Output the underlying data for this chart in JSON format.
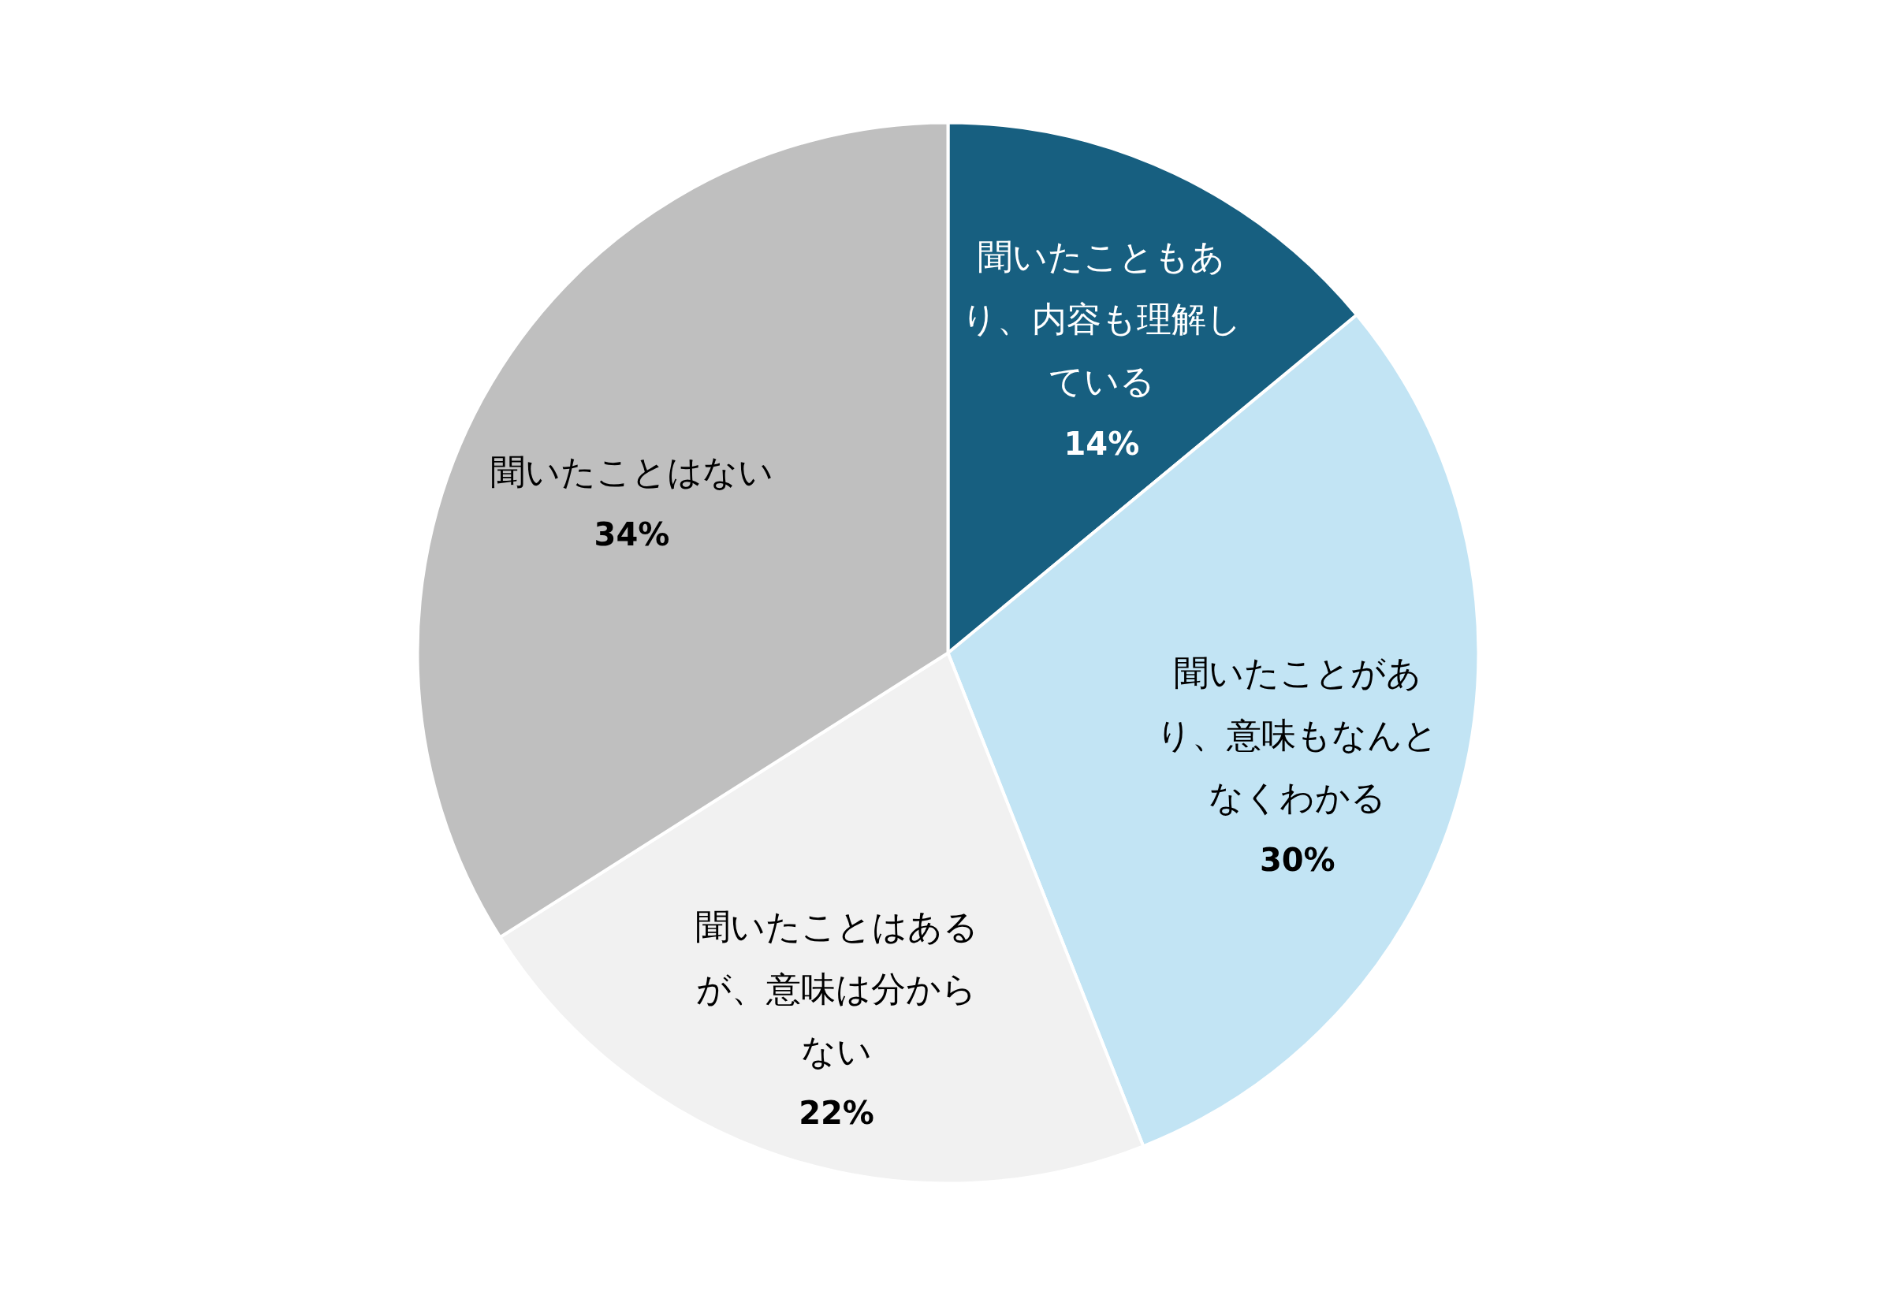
{
  "chart_data": {
    "type": "pie",
    "categories": [
      "聞いたこともあり、内容も理解している",
      "聞いたことがあり、意味もなんとなくわかる",
      "聞いたことはあるが、意味は分からない",
      "聞いたことはない"
    ],
    "values": [
      14,
      30,
      22,
      34
    ],
    "colors": [
      "#175f80",
      "#c2e4f4",
      "#f1f1f1",
      "#bfbfbf"
    ],
    "value_labels": [
      "14%",
      "30%",
      "22%",
      "34%"
    ]
  }
}
